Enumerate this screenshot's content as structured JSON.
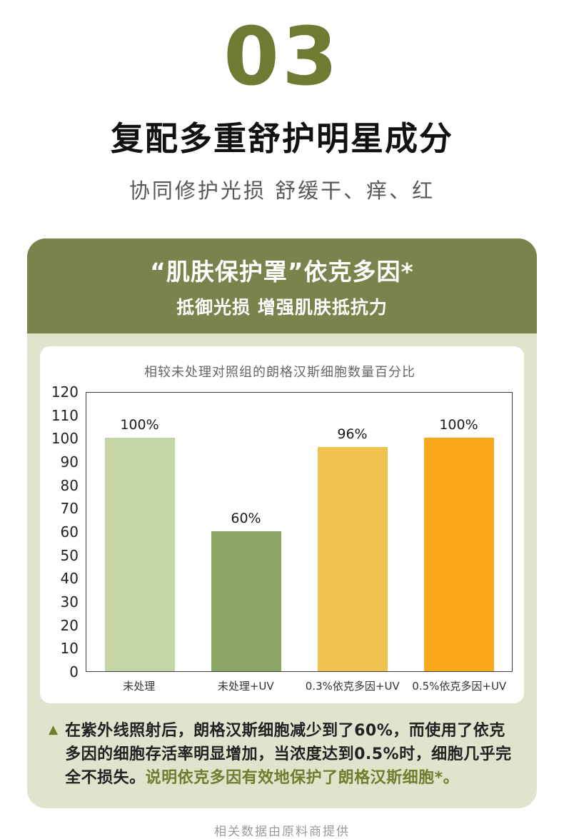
{
  "page": {
    "section_number": "03",
    "title": "复配多重舒护明星成分",
    "subtitle": "协同修护光损 舒缓干、痒、红",
    "footer": "相关数据由原料商提供"
  },
  "card": {
    "header_title": "“肌肤保护罩”依克多因*",
    "header_subtitle": "抵御光损 增强肌肤抵抗力"
  },
  "chart_data": {
    "type": "bar",
    "title": "相较未处理对照组的朗格汉斯细胞数量百分比",
    "categories": [
      "未处理",
      "未处理+UV",
      "0.3%依克多因+UV",
      "0.5%依克多因+UV"
    ],
    "values": [
      100,
      60,
      96,
      100
    ],
    "value_labels": [
      "100%",
      "60%",
      "96%",
      "100%"
    ],
    "bar_colors": [
      "#c6d5a8",
      "#8ca666",
      "#f2c24e",
      "#f9a71b"
    ],
    "xlabel": "",
    "ylabel": "",
    "ylim": [
      0,
      120
    ],
    "ytick_step": 10,
    "grid": false,
    "legend": false
  },
  "annotation": {
    "bullet": "▲",
    "text": "在紫外线照射后，朗格汉斯细胞减少到了60%，而使用了依克多因的细胞存活率明显增加，当浓度达到0.5%时，细胞几乎完全不损失。",
    "highlight": "说明依克多因有效地保护了朗格汉斯细胞*。"
  },
  "colors": {
    "accent_olive": "#6d7b33",
    "header_band": "#79834b",
    "card_bg": "#dee5cc"
  }
}
